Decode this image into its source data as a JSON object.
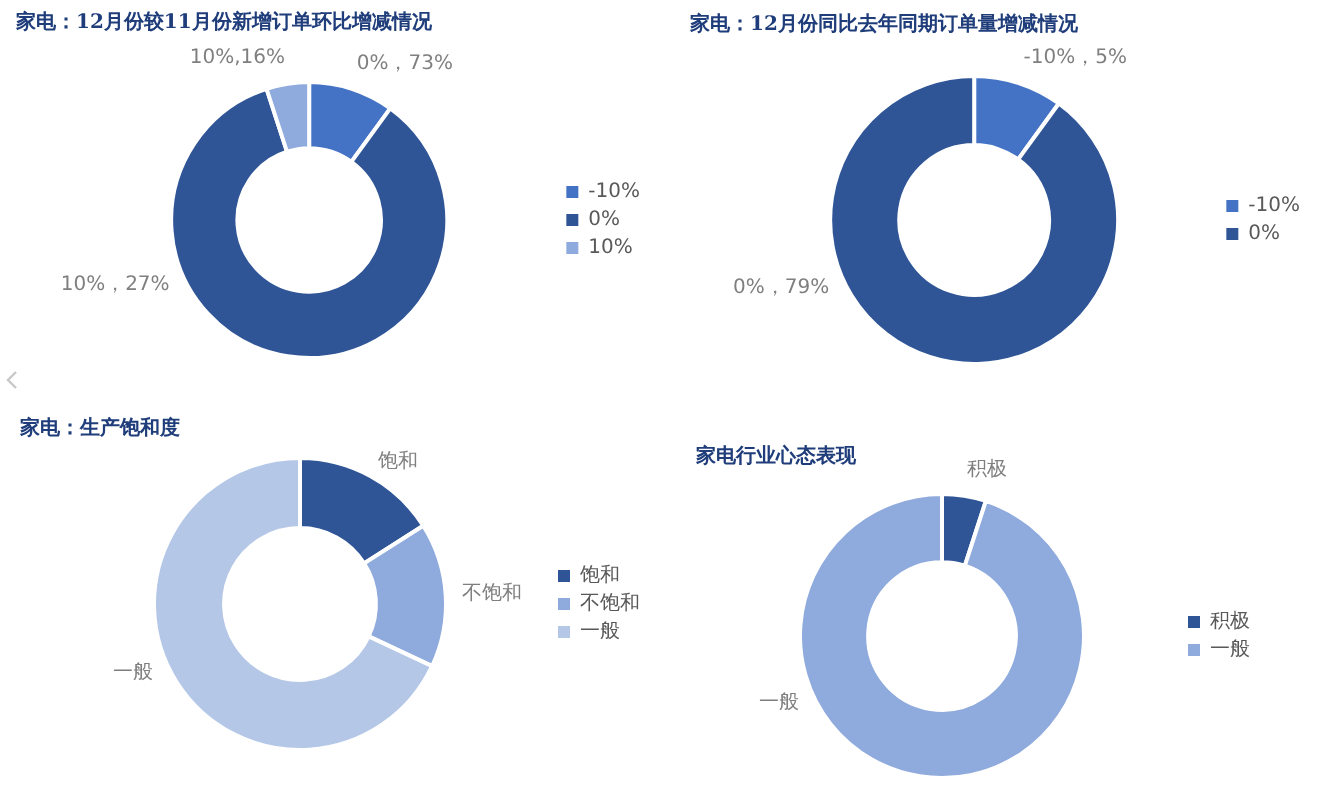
{
  "chart_data": [
    {
      "type": "donut",
      "title": "家电：12月份较11月份新增订单环比增减情况",
      "categories": [
        "-10%",
        "0%",
        "10%"
      ],
      "values": [
        10,
        85,
        5
      ],
      "colors": [
        "#4472c4",
        "#2f5597",
        "#8faadc"
      ],
      "annotations": [
        "0%，73%",
        "10%，27%",
        "10%,16%"
      ],
      "legend": "right"
    },
    {
      "type": "donut",
      "title": "家电：12月份同比去年同期订单量增减情况",
      "categories": [
        "-10%",
        "0%"
      ],
      "values": [
        10,
        90
      ],
      "colors": [
        "#4472c4",
        "#2f5597"
      ],
      "annotations": [
        "-10%，5%",
        "0%，79%"
      ],
      "legend": "right"
    },
    {
      "type": "donut",
      "title": "家电：生产饱和度",
      "categories": [
        "饱和",
        "不饱和",
        "一般"
      ],
      "values": [
        16,
        16,
        68
      ],
      "colors": [
        "#2f5597",
        "#8faadc",
        "#b4c7e7"
      ],
      "value_labels": [
        "饱和",
        "不饱和",
        "一般"
      ],
      "legend": "right"
    },
    {
      "type": "donut",
      "title": "家电行业心态表现",
      "categories": [
        "积极",
        "一般"
      ],
      "values": [
        5,
        95
      ],
      "colors": [
        "#2f5597",
        "#8faadc"
      ],
      "value_labels": [
        "积极",
        "一般"
      ],
      "legend": "right"
    }
  ]
}
